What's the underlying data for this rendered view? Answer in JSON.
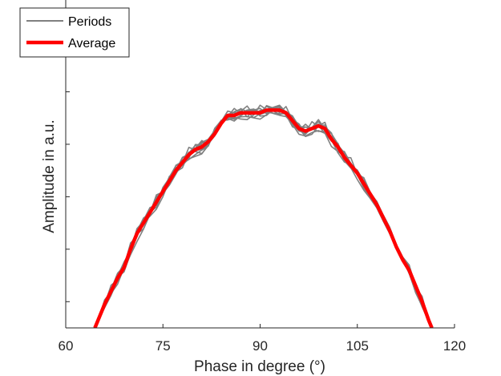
{
  "chart_data": {
    "type": "line",
    "xlabel": "Phase in degree (°)",
    "ylabel": "Amplitude in a.u.",
    "xlim": [
      60,
      120
    ],
    "ylim": [
      0,
      1.25
    ],
    "x_ticks": [
      60,
      75,
      90,
      105,
      120
    ],
    "x_tick_labels": [
      "60",
      "75",
      "90",
      "105",
      "120"
    ],
    "y_ticks": [
      0.1,
      0.3,
      0.5,
      0.7,
      0.9,
      1.1
    ],
    "grid": false,
    "legend": {
      "position": "top-left",
      "entries": [
        {
          "label": "Periods",
          "color": "#808080"
        },
        {
          "label": "Average",
          "color": "#ff0000"
        }
      ]
    },
    "x": [
      64.5,
      65,
      66,
      67,
      68,
      69,
      70,
      71,
      72,
      73,
      74,
      75,
      76,
      77,
      78,
      79,
      80,
      81,
      82,
      83,
      84,
      85,
      86,
      87,
      88,
      89,
      90,
      91,
      92,
      93,
      94,
      95,
      96,
      97,
      98,
      99,
      100,
      101,
      102,
      103,
      104,
      105,
      106,
      107,
      108,
      109,
      110,
      111,
      112,
      113,
      114,
      115,
      116,
      116.5
    ],
    "series": [
      {
        "name": "Average",
        "color": "#ff0000",
        "values": [
          0,
          0.03,
          0.09,
          0.14,
          0.19,
          0.23,
          0.3,
          0.36,
          0.4,
          0.44,
          0.48,
          0.52,
          0.56,
          0.6,
          0.63,
          0.66,
          0.68,
          0.69,
          0.71,
          0.74,
          0.78,
          0.81,
          0.81,
          0.82,
          0.82,
          0.82,
          0.82,
          0.83,
          0.83,
          0.83,
          0.82,
          0.79,
          0.76,
          0.75,
          0.76,
          0.77,
          0.76,
          0.72,
          0.69,
          0.65,
          0.62,
          0.59,
          0.55,
          0.51,
          0.47,
          0.42,
          0.37,
          0.31,
          0.26,
          0.22,
          0.16,
          0.1,
          0.03,
          0
        ]
      }
    ],
    "periods": {
      "name": "Periods",
      "color": "#808080",
      "count": 10
    }
  }
}
